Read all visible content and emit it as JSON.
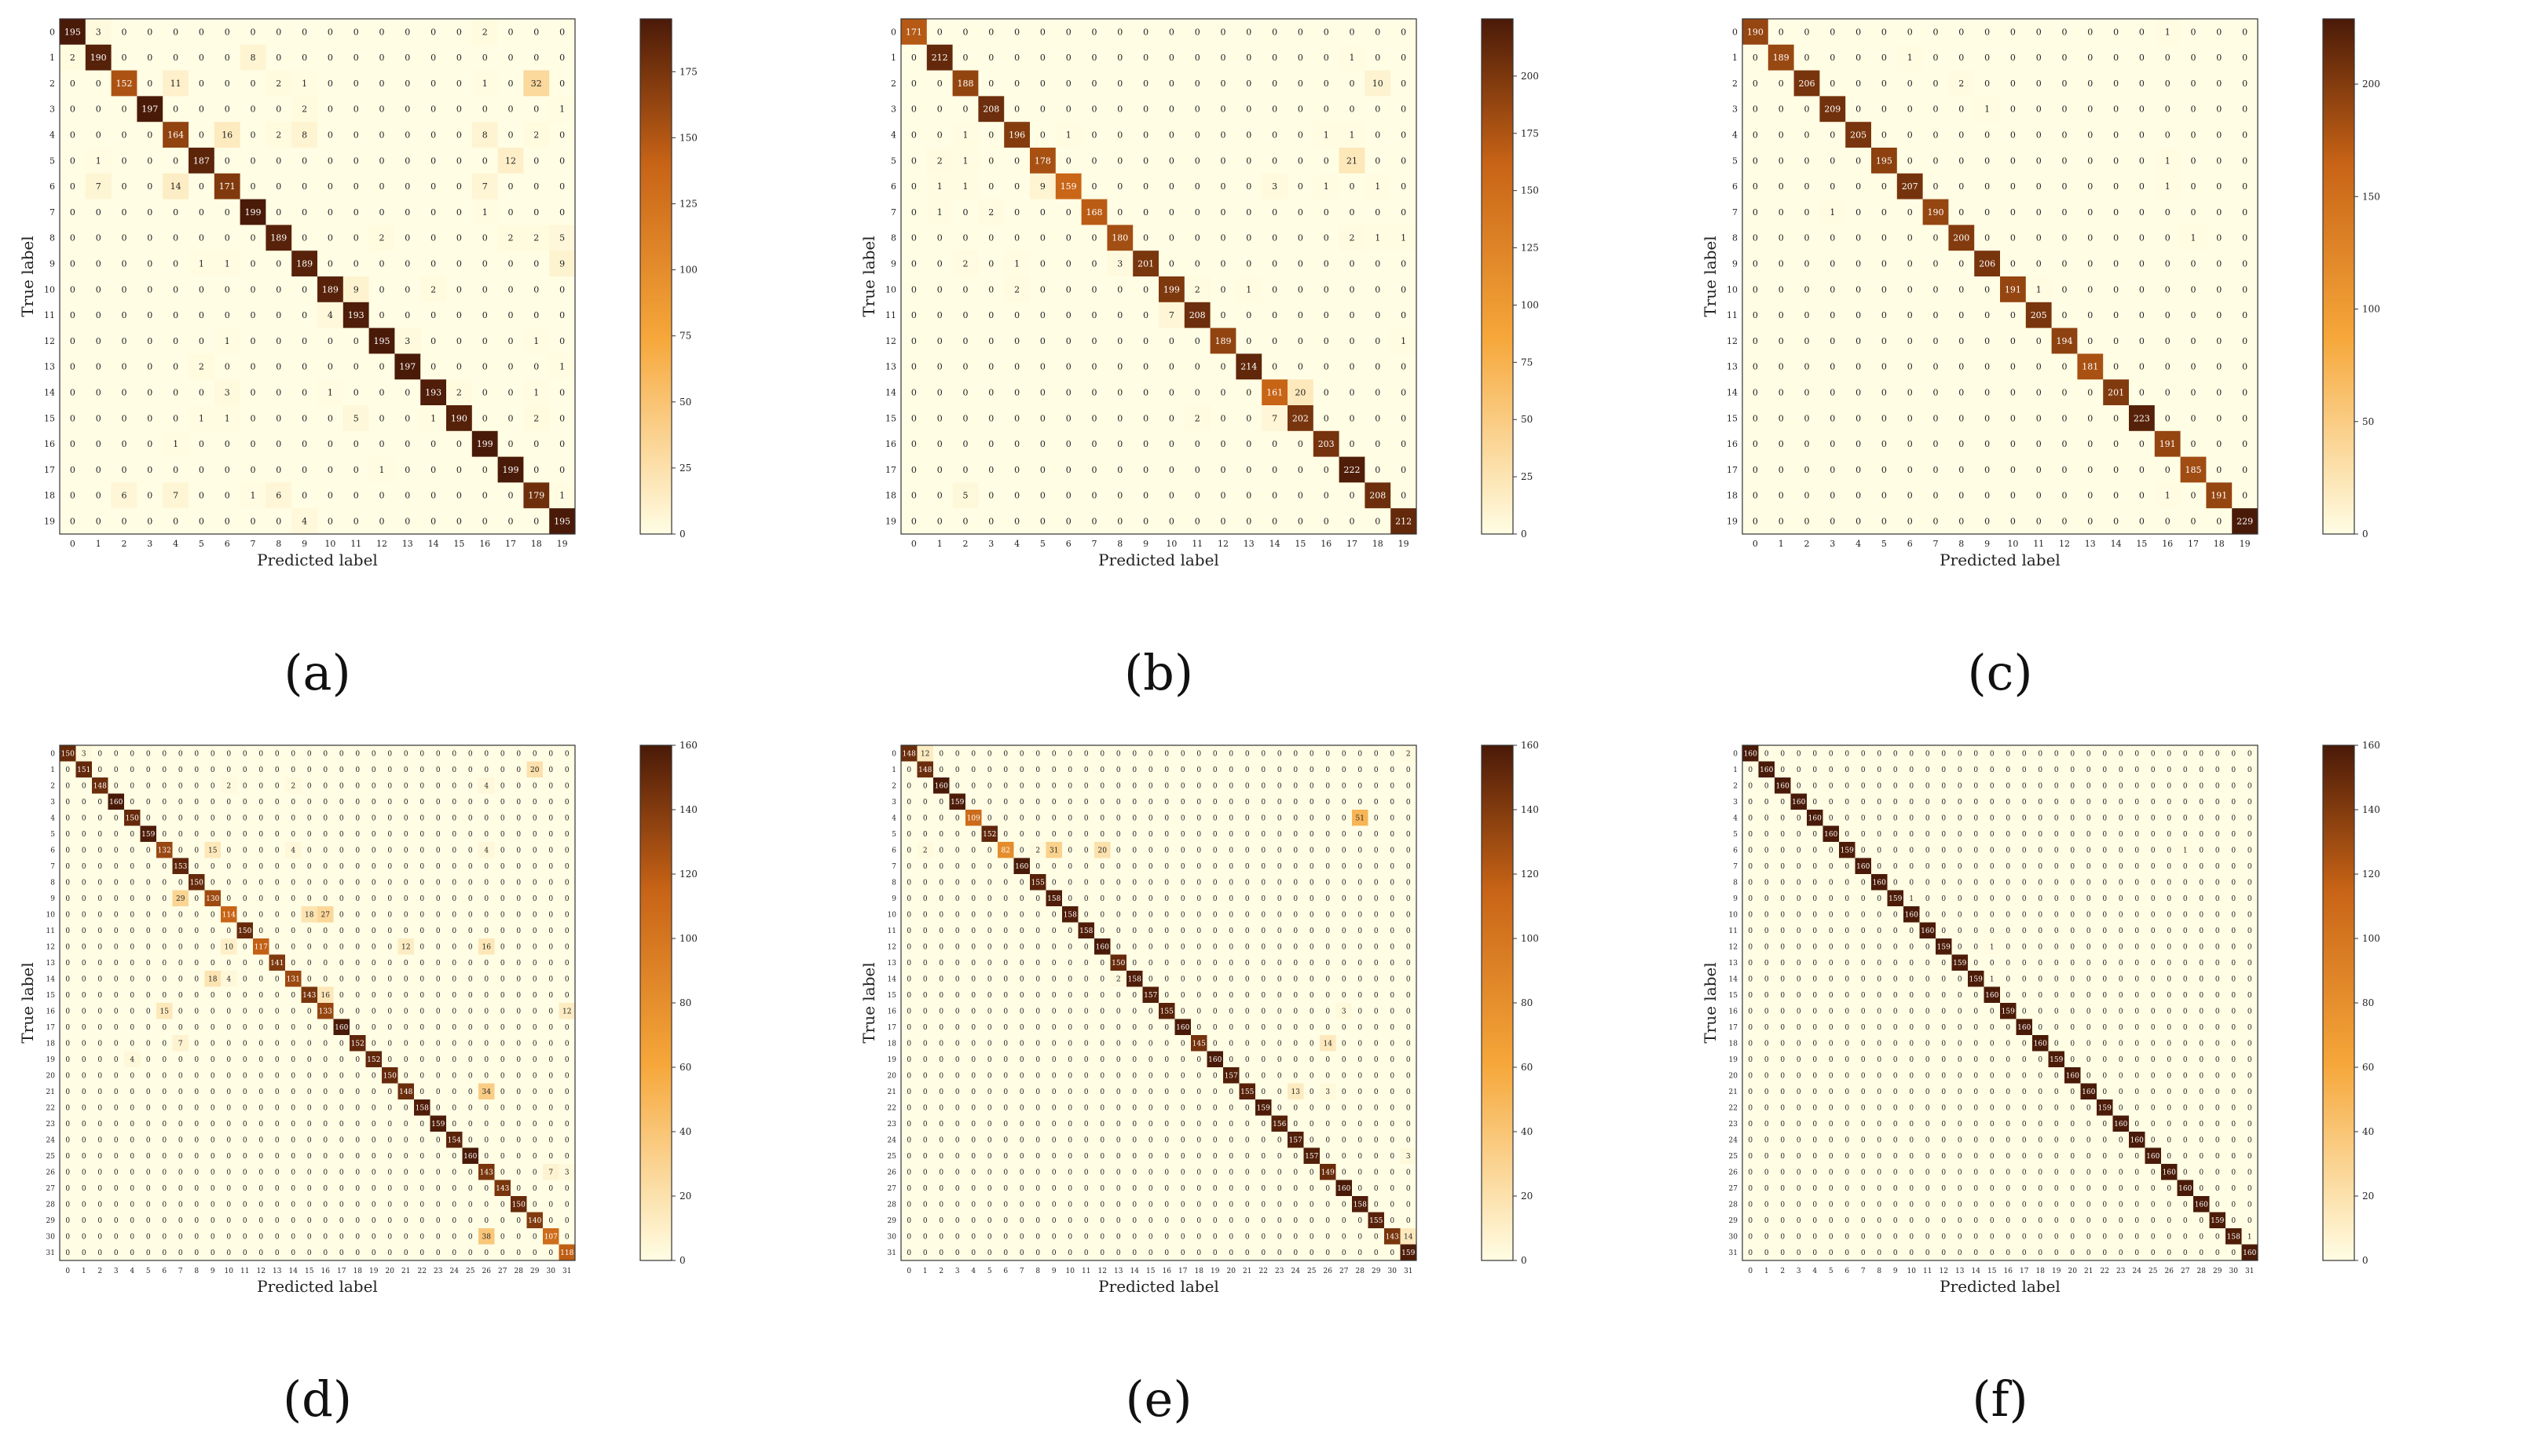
{
  "color_scale": {
    "low": "#fffde4",
    "mid": "#f6a73a",
    "mid2": "#c76316",
    "high": "#4a1a08"
  },
  "chart_data": [
    {
      "panel_label": "(a)",
      "type": "heatmap",
      "xlabel": "Predicted label",
      "ylabel": "True label",
      "labels": [
        "0",
        "1",
        "2",
        "3",
        "4",
        "5",
        "6",
        "7",
        "8",
        "9",
        "10",
        "11",
        "12",
        "13",
        "14",
        "15",
        "16",
        "17",
        "18",
        "19"
      ],
      "vmax": 195,
      "colorbar_ticks": [
        0,
        25,
        50,
        75,
        100,
        125,
        150,
        175
      ],
      "diagonal": [
        195,
        190,
        152,
        197,
        164,
        187,
        171,
        199,
        189,
        189,
        189,
        193,
        195,
        197,
        193,
        190,
        199,
        199,
        179,
        195
      ],
      "off_diagonal": [
        [
          0,
          1,
          3
        ],
        [
          0,
          16,
          2
        ],
        [
          1,
          0,
          2
        ],
        [
          1,
          7,
          8
        ],
        [
          2,
          4,
          11
        ],
        [
          2,
          8,
          2
        ],
        [
          2,
          9,
          1
        ],
        [
          2,
          16,
          1
        ],
        [
          2,
          18,
          32
        ],
        [
          3,
          9,
          2
        ],
        [
          3,
          19,
          1
        ],
        [
          4,
          6,
          16
        ],
        [
          4,
          8,
          2
        ],
        [
          4,
          9,
          8
        ],
        [
          4,
          16,
          8
        ],
        [
          4,
          18,
          2
        ],
        [
          5,
          1,
          1
        ],
        [
          5,
          17,
          12
        ],
        [
          6,
          1,
          7
        ],
        [
          6,
          4,
          14
        ],
        [
          6,
          16,
          7
        ],
        [
          7,
          16,
          1
        ],
        [
          8,
          12,
          2
        ],
        [
          8,
          17,
          2
        ],
        [
          8,
          18,
          2
        ],
        [
          8,
          19,
          5
        ],
        [
          9,
          5,
          1
        ],
        [
          9,
          6,
          1
        ],
        [
          9,
          19,
          9
        ],
        [
          10,
          11,
          9
        ],
        [
          10,
          14,
          2
        ],
        [
          11,
          10,
          4
        ],
        [
          12,
          6,
          1
        ],
        [
          12,
          13,
          3
        ],
        [
          12,
          18,
          1
        ],
        [
          13,
          5,
          2
        ],
        [
          13,
          19,
          1
        ],
        [
          14,
          6,
          3
        ],
        [
          14,
          10,
          1
        ],
        [
          14,
          15,
          2
        ],
        [
          14,
          18,
          1
        ],
        [
          15,
          5,
          1
        ],
        [
          15,
          6,
          1
        ],
        [
          15,
          11,
          5
        ],
        [
          15,
          14,
          1
        ],
        [
          15,
          18,
          2
        ],
        [
          16,
          4,
          1
        ],
        [
          17,
          12,
          1
        ],
        [
          18,
          2,
          6
        ],
        [
          18,
          4,
          7
        ],
        [
          18,
          7,
          1
        ],
        [
          18,
          8,
          6
        ],
        [
          18,
          19,
          1
        ],
        [
          19,
          9,
          4
        ]
      ]
    },
    {
      "panel_label": "(b)",
      "type": "heatmap",
      "xlabel": "Predicted label",
      "ylabel": "True label",
      "labels": [
        "0",
        "1",
        "2",
        "3",
        "4",
        "5",
        "6",
        "7",
        "8",
        "9",
        "10",
        "11",
        "12",
        "13",
        "14",
        "15",
        "16",
        "17",
        "18",
        "19"
      ],
      "vmax": 225,
      "colorbar_ticks": [
        0,
        25,
        50,
        75,
        100,
        125,
        150,
        175,
        200
      ],
      "diagonal": [
        171,
        212,
        188,
        208,
        196,
        178,
        159,
        168,
        180,
        201,
        199,
        208,
        189,
        214,
        161,
        202,
        203,
        222,
        208,
        212
      ],
      "off_diagonal": [
        [
          1,
          17,
          1
        ],
        [
          2,
          18,
          10
        ],
        [
          4,
          2,
          1
        ],
        [
          4,
          4,
          196
        ],
        [
          4,
          6,
          1
        ],
        [
          4,
          16,
          1
        ],
        [
          4,
          17,
          1
        ],
        [
          5,
          1,
          2
        ],
        [
          5,
          2,
          1
        ],
        [
          5,
          17,
          21
        ],
        [
          6,
          1,
          1
        ],
        [
          6,
          2,
          1
        ],
        [
          6,
          5,
          9
        ],
        [
          6,
          14,
          3
        ],
        [
          6,
          16,
          1
        ],
        [
          6,
          18,
          1
        ],
        [
          7,
          1,
          1
        ],
        [
          7,
          3,
          2
        ],
        [
          8,
          17,
          2
        ],
        [
          8,
          18,
          1
        ],
        [
          8,
          19,
          1
        ],
        [
          9,
          2,
          2
        ],
        [
          9,
          4,
          1
        ],
        [
          9,
          8,
          3
        ],
        [
          10,
          4,
          2
        ],
        [
          10,
          11,
          2
        ],
        [
          10,
          13,
          1
        ],
        [
          11,
          10,
          7
        ],
        [
          12,
          19,
          1
        ],
        [
          14,
          15,
          20
        ],
        [
          15,
          11,
          2
        ],
        [
          15,
          14,
          7
        ],
        [
          18,
          2,
          5
        ]
      ]
    },
    {
      "panel_label": "(c)",
      "type": "heatmap",
      "xlabel": "Predicted label",
      "ylabel": "True label",
      "labels": [
        "0",
        "1",
        "2",
        "3",
        "4",
        "5",
        "6",
        "7",
        "8",
        "9",
        "10",
        "11",
        "12",
        "13",
        "14",
        "15",
        "16",
        "17",
        "18",
        "19"
      ],
      "vmax": 229,
      "colorbar_ticks": [
        0,
        50,
        100,
        150,
        200
      ],
      "diagonal": [
        190,
        189,
        206,
        209,
        205,
        195,
        207,
        190,
        200,
        206,
        191,
        205,
        194,
        181,
        201,
        223,
        191,
        185,
        191,
        229
      ],
      "off_diagonal": [
        [
          0,
          16,
          1
        ],
        [
          1,
          6,
          1
        ],
        [
          2,
          8,
          2
        ],
        [
          3,
          9,
          1
        ],
        [
          5,
          16,
          1
        ],
        [
          6,
          16,
          1
        ],
        [
          7,
          3,
          1
        ],
        [
          8,
          17,
          1
        ],
        [
          10,
          11,
          1
        ],
        [
          18,
          16,
          1
        ]
      ]
    },
    {
      "panel_label": "(d)",
      "type": "heatmap",
      "xlabel": "Predicted label",
      "ylabel": "True label",
      "labels": [
        "0",
        "1",
        "2",
        "3",
        "4",
        "5",
        "6",
        "7",
        "8",
        "9",
        "10",
        "11",
        "12",
        "13",
        "14",
        "15",
        "16",
        "17",
        "18",
        "19",
        "20",
        "21",
        "22",
        "23",
        "24",
        "25",
        "26",
        "27",
        "28",
        "29",
        "30",
        "31"
      ],
      "vmax": 160,
      "colorbar_ticks": [
        0,
        20,
        40,
        60,
        80,
        100,
        120,
        140,
        160
      ],
      "diagonal": [
        150,
        151,
        148,
        160,
        150,
        159,
        132,
        153,
        150,
        130,
        114,
        150,
        117,
        141,
        131,
        143,
        133,
        160,
        152,
        152,
        150,
        148,
        158,
        159,
        154,
        160,
        143,
        143,
        150,
        140,
        107,
        118
      ],
      "off_diagonal": [
        [
          0,
          1,
          3
        ],
        [
          1,
          29,
          20
        ],
        [
          2,
          10,
          2
        ],
        [
          2,
          14,
          2
        ],
        [
          2,
          26,
          4
        ],
        [
          6,
          9,
          15
        ],
        [
          6,
          14,
          4
        ],
        [
          6,
          26,
          4
        ],
        [
          9,
          7,
          29
        ],
        [
          10,
          15,
          18
        ],
        [
          10,
          16,
          27
        ],
        [
          12,
          10,
          10
        ],
        [
          12,
          21,
          12
        ],
        [
          12,
          26,
          16
        ],
        [
          14,
          9,
          18
        ],
        [
          14,
          10,
          4
        ],
        [
          15,
          16,
          16
        ],
        [
          16,
          6,
          15
        ],
        [
          16,
          31,
          12
        ],
        [
          18,
          7,
          7
        ],
        [
          19,
          4,
          4
        ],
        [
          21,
          26,
          34
        ],
        [
          26,
          30,
          7
        ],
        [
          26,
          31,
          3
        ],
        [
          30,
          26,
          38
        ]
      ]
    },
    {
      "panel_label": "(e)",
      "type": "heatmap",
      "xlabel": "Predicted label",
      "ylabel": "True label",
      "labels": [
        "0",
        "1",
        "2",
        "3",
        "4",
        "5",
        "6",
        "7",
        "8",
        "9",
        "10",
        "11",
        "12",
        "13",
        "14",
        "15",
        "16",
        "17",
        "18",
        "19",
        "20",
        "21",
        "22",
        "23",
        "24",
        "25",
        "26",
        "27",
        "28",
        "29",
        "30",
        "31"
      ],
      "vmax": 160,
      "colorbar_ticks": [
        0,
        20,
        40,
        60,
        80,
        100,
        120,
        140,
        160
      ],
      "diagonal": [
        148,
        148,
        160,
        159,
        109,
        152,
        82,
        160,
        155,
        158,
        158,
        158,
        160,
        150,
        158,
        157,
        155,
        160,
        145,
        160,
        157,
        155,
        159,
        156,
        157,
        157,
        149,
        160,
        158,
        155,
        143,
        159
      ],
      "off_diagonal": [
        [
          0,
          1,
          12
        ],
        [
          0,
          31,
          2
        ],
        [
          4,
          28,
          51
        ],
        [
          6,
          9,
          31
        ],
        [
          6,
          12,
          20
        ],
        [
          6,
          1,
          2
        ],
        [
          6,
          8,
          2
        ],
        [
          14,
          13,
          2
        ],
        [
          18,
          26,
          14
        ],
        [
          21,
          24,
          13
        ],
        [
          21,
          26,
          3
        ],
        [
          16,
          27,
          3
        ],
        [
          30,
          31,
          14
        ],
        [
          25,
          31,
          3
        ]
      ]
    },
    {
      "panel_label": "(f)",
      "type": "heatmap",
      "xlabel": "Predicted label",
      "ylabel": "True label",
      "labels": [
        "0",
        "1",
        "2",
        "3",
        "4",
        "5",
        "6",
        "7",
        "8",
        "9",
        "10",
        "11",
        "12",
        "13",
        "14",
        "15",
        "16",
        "17",
        "18",
        "19",
        "20",
        "21",
        "22",
        "23",
        "24",
        "25",
        "26",
        "27",
        "28",
        "29",
        "30",
        "31"
      ],
      "vmax": 160,
      "colorbar_ticks": [
        0,
        20,
        40,
        60,
        80,
        100,
        120,
        140,
        160
      ],
      "diagonal": [
        160,
        160,
        160,
        160,
        160,
        160,
        159,
        160,
        160,
        159,
        160,
        160,
        159,
        159,
        159,
        160,
        159,
        160,
        160,
        159,
        160,
        160,
        159,
        160,
        160,
        160,
        160,
        160,
        160,
        159,
        158,
        160
      ],
      "off_diagonal": [
        [
          30,
          31,
          1
        ],
        [
          6,
          27,
          1
        ],
        [
          9,
          10,
          1
        ],
        [
          14,
          15,
          1
        ],
        [
          12,
          15,
          1
        ]
      ]
    }
  ]
}
